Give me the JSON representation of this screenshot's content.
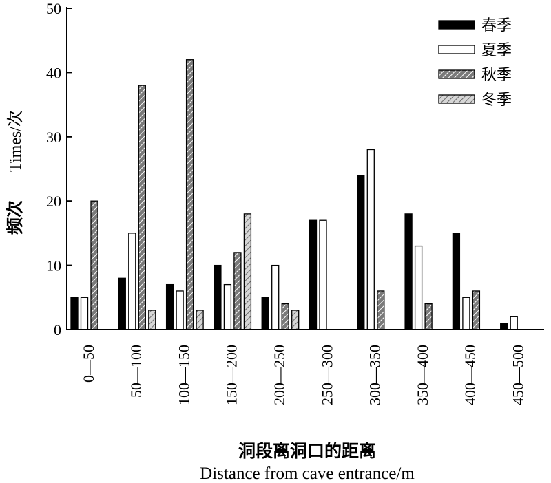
{
  "chart_data": {
    "type": "bar",
    "categories": [
      "0—50",
      "50—100",
      "100—150",
      "150—200",
      "200—250",
      "250—300",
      "300—350",
      "350—400",
      "400—450",
      "450—500"
    ],
    "series": [
      {
        "name": "春季",
        "values": [
          5,
          8,
          7,
          10,
          5,
          17,
          24,
          18,
          15,
          1
        ]
      },
      {
        "name": "夏季",
        "values": [
          5,
          15,
          6,
          7,
          10,
          17,
          28,
          13,
          5,
          2
        ]
      },
      {
        "name": "秋季",
        "values": [
          20,
          38,
          42,
          12,
          4,
          0,
          6,
          4,
          6,
          0
        ]
      },
      {
        "name": "冬季",
        "values": [
          0,
          3,
          3,
          18,
          3,
          0,
          0,
          0,
          0,
          0
        ]
      }
    ],
    "series_styles": [
      {
        "fill": "#000000",
        "pattern": "solid"
      },
      {
        "fill": "#ffffff",
        "pattern": "solid"
      },
      {
        "fill": "#888888",
        "pattern": "hatch-dark"
      },
      {
        "fill": "#cccccc",
        "pattern": "hatch-light"
      }
    ],
    "ylim": [
      0,
      50
    ],
    "yticks": [
      0,
      10,
      20,
      30,
      40,
      50
    ],
    "ylabel_cn": "频次",
    "ylabel_en": "Times/次",
    "xlabel_cn": "洞段离洞口的距离",
    "xlabel_en": "Distance from cave entrance/m",
    "legend_position": "top-right",
    "grid": false
  }
}
